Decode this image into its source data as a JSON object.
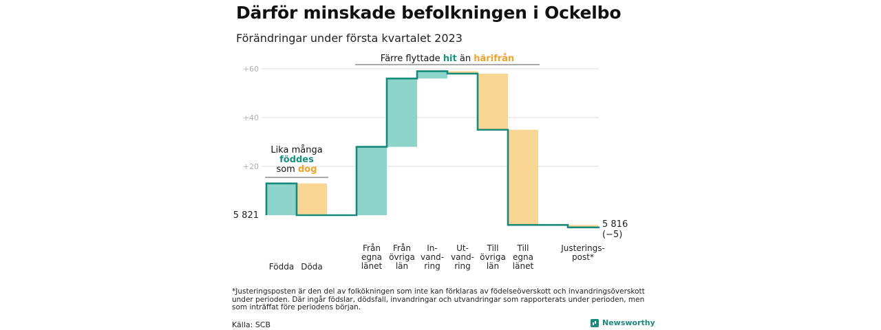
{
  "title": "Därför minskade befolkningen i Ockelbo",
  "subtitle": "Förändringar under första kvartalet 2023",
  "colors": {
    "increase": "#8dd5cb",
    "decrease": "#f9d693",
    "line": "#15897a",
    "teal_text": "#17917f",
    "orange_text": "#f0a229",
    "grid": "#dddddd",
    "tick": "#b0b0b0"
  },
  "chart_data": {
    "type": "waterfall",
    "start_value": 5821,
    "start_label": "5 821",
    "end_label": "5 816",
    "end_change_label": "(−5)",
    "ylim": [
      -5,
      61
    ],
    "yticks": [
      {
        "value": 20,
        "label": "+20"
      },
      {
        "value": 40,
        "label": "+40"
      },
      {
        "value": 60,
        "label": "+60"
      }
    ],
    "steps": [
      {
        "label_lines": [
          "Födda"
        ],
        "change": 13
      },
      {
        "label_lines": [
          "Döda"
        ],
        "change": -13
      },
      {
        "label_lines": [
          "Från",
          "egna",
          "länet"
        ],
        "change": 28
      },
      {
        "label_lines": [
          "Från",
          "övriga",
          "län"
        ],
        "change": 28
      },
      {
        "label_lines": [
          "In-",
          "vand-",
          "ring"
        ],
        "change": 3
      },
      {
        "label_lines": [
          "Ut-",
          "vand-",
          "ring"
        ],
        "change": -1
      },
      {
        "label_lines": [
          "Till",
          "övriga",
          "län"
        ],
        "change": -23
      },
      {
        "label_lines": [
          "Till",
          "egna",
          "länet"
        ],
        "change": -39
      },
      {
        "label_lines": [
          "Justerings-",
          "post*"
        ],
        "change": -1
      }
    ],
    "annotations": [
      {
        "id": "births",
        "lines": [
          [
            {
              "text": "Lika många",
              "color": "normal"
            }
          ],
          [
            {
              "text": "föddes",
              "color": "teal"
            }
          ],
          [
            {
              "text": "som ",
              "color": "normal"
            },
            {
              "text": "dog",
              "color": "orange"
            }
          ]
        ]
      },
      {
        "id": "migration",
        "lines": [
          [
            {
              "text": "Färre flyttade ",
              "color": "normal"
            },
            {
              "text": "hit",
              "color": "teal"
            },
            {
              "text": " än ",
              "color": "normal"
            },
            {
              "text": "härifrån",
              "color": "orange"
            }
          ]
        ]
      }
    ]
  },
  "footnote": "*Justeringsposten är den del av folkökningen som inte kan förklaras av födelseöverskott och invandringsöverskott under perioden. Där ingår födslar, dödsfall, invandringar och utvandringar som rapporterats under perioden, men som inträffat före periodens början.",
  "source": "Källa: SCB",
  "brand": "Newsworthy"
}
